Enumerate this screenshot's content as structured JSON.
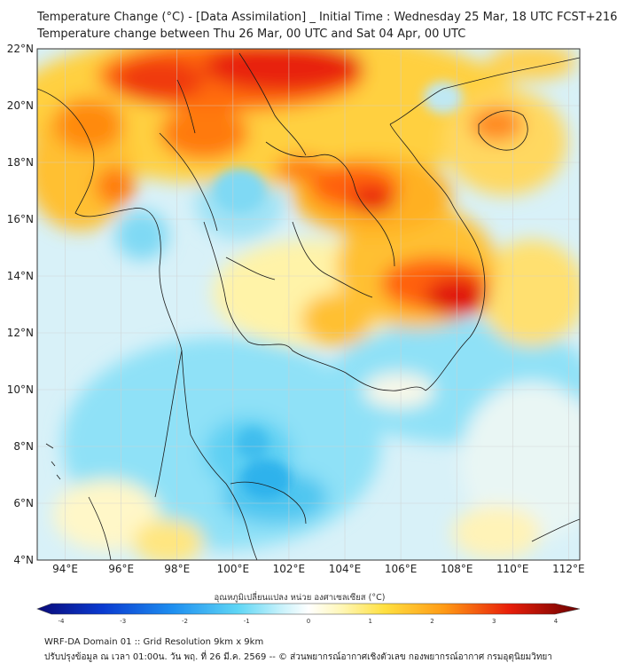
{
  "title_line1": "Temperature Change (°C) - [Data Assimilation] _ Initial Time : Wednesday 25 Mar, 18 UTC FCST+216",
  "title_line2": "Temperature change between Thu 26 Mar, 00 UTC and Sat 04 Apr, 00 UTC",
  "lat_labels": [
    "22°N",
    "20°N",
    "18°N",
    "16°N",
    "14°N",
    "12°N",
    "10°N",
    "8°N",
    "6°N",
    "4°N"
  ],
  "lon_labels": [
    "94°E",
    "96°E",
    "98°E",
    "100°E",
    "102°E",
    "104°E",
    "106°E",
    "108°E",
    "110°E",
    "112°E"
  ],
  "colorbar": {
    "title": "อุณหภูมิเปลี่ยนแปลง หน่วย องศาเซลเซียส (°C)",
    "ticks": [
      "-4",
      "-3",
      "-2",
      "-1",
      "0",
      "1",
      "2",
      "3",
      "4"
    ],
    "range": [
      -4,
      4
    ]
  },
  "footer_line1": "WRF-DA Domain 01 :: Grid Resolution 9km x 9km",
  "footer_line2": "ปรับปรุงข้อมูล ณ เวลา 01:00น. วัน พฤ. ที่ 26 มี.ค. 2569 -- © ส่วนพยากรณ์อากาศเชิงตัวเลข กองพยากรณ์อากาศ กรมอุตุนิยมวิทยา",
  "colors": {
    "hot": "#d9000f",
    "orange": "#ff8c10",
    "yellow": "#fff07a",
    "cyan": "#5fd6f5",
    "blue": "#1a8fe0"
  }
}
